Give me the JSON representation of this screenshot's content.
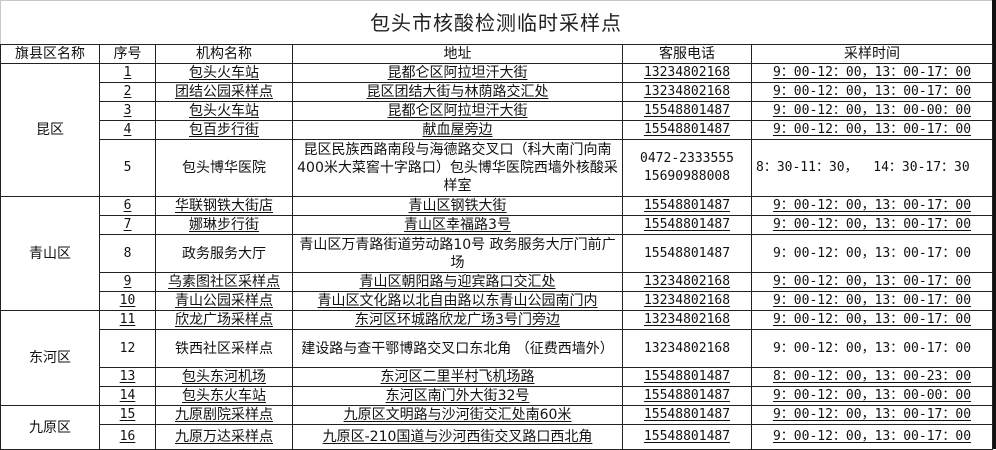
{
  "title": "包头市核酸检测临时采样点",
  "headers": [
    "旗县区名称",
    "序号",
    "机构名称",
    "地址",
    "客服电话",
    "采样时间"
  ],
  "groups": [
    {
      "district": "昆区",
      "rows": [
        {
          "no": "1",
          "name": "包头火车站",
          "address": "昆都仑区阿拉坦汗大街",
          "phone": "13234802168",
          "time": "9：00-12：00，13：00-17：00"
        },
        {
          "no": "2",
          "name": "团结公园采样点",
          "address": "昆区团结大街与林荫路交汇处",
          "phone": "13234802168",
          "time": "9：00-12：00，13：00-17：00"
        },
        {
          "no": "3",
          "name": "包头火车站",
          "address": "昆都仑区阿拉坦汗大街",
          "phone": "15548801487",
          "time": "9：00-12：00，13：00-00：00"
        },
        {
          "no": "4",
          "name": "包百步行街",
          "address": "献血屋旁边",
          "phone": "15548801487",
          "time": "9：00-12：00，13：00-17：00"
        },
        {
          "no": "5",
          "name": "包头博华医院",
          "address": "昆区民族西路南段与海德路交叉口（科大南门向南400米大菜窖十字路口）包头博华医院西墙外核酸采样室",
          "phone": "0472-2333555 15690988008",
          "time": "8：30-11：30，  14：30-17：30"
        }
      ]
    },
    {
      "district": "青山区",
      "rows": [
        {
          "no": "6",
          "name": "华联钢铁大街店",
          "address": "青山区钢铁大街",
          "phone": "15548801487",
          "time": "9：00-12：00，13：00-17：00"
        },
        {
          "no": "7",
          "name": "娜琳步行街",
          "address": "青山区幸福路3号",
          "phone": "15548801487",
          "time": "9：00-12：00，13：00-17：00"
        },
        {
          "no": "8",
          "name": "政务服务大厅",
          "address": "青山区万青路街道劳动路10号 政务服务大厅门前广场",
          "phone": "15548801487",
          "time": "9：00-12：00，13：00-17：00"
        },
        {
          "no": "9",
          "name": "乌素图社区采样点",
          "address": "青山区朝阳路与迎宾路口交汇处",
          "phone": "13234802168",
          "time": "9：00-12：00，13：00-17：00"
        },
        {
          "no": "10",
          "name": "青山公园采样点",
          "address": "青山区文化路以北自由路以东青山公园南门内",
          "phone": "13234802168",
          "time": "9：00-12：00，13：00-17：00"
        }
      ]
    },
    {
      "district": "东河区",
      "rows": [
        {
          "no": "11",
          "name": "欣龙广场采样点",
          "address": "东河区环城路欣龙广场3号门旁边",
          "phone": "13234802168",
          "time": "9：00-12：00，13：00-17：00"
        },
        {
          "no": "12",
          "name": "铁西社区采样点",
          "address": "建设路与查干鄂博路交叉口东北角 （征费西墙外）",
          "phone": "13234802168",
          "time": "9：00-12：00，13：00-17：00"
        },
        {
          "no": "13",
          "name": "包头东河机场",
          "address": "东河区二里半村飞机场路",
          "phone": "15548801487",
          "time": "8：00-12：00，13：00-23：00"
        },
        {
          "no": "14",
          "name": "包头东火车站",
          "address": "东河区南门外大街32号",
          "phone": "15548801487",
          "time": "9：00-12：00，13：00-00：00"
        }
      ]
    },
    {
      "district": "九原区",
      "rows": [
        {
          "no": "15",
          "name": "九原剧院采样点",
          "address": "九原区文明路与沙河街交汇处南60米",
          "phone": "15548801487",
          "time": "9：00-12：00，13：00-17：00"
        },
        {
          "no": "16",
          "name": "九原万达采样点",
          "address": "九原区-210国道与沙河西街交叉路口西北角",
          "phone": "15548801487",
          "time": "9：00-12：00，13：00-17：00"
        }
      ]
    }
  ]
}
